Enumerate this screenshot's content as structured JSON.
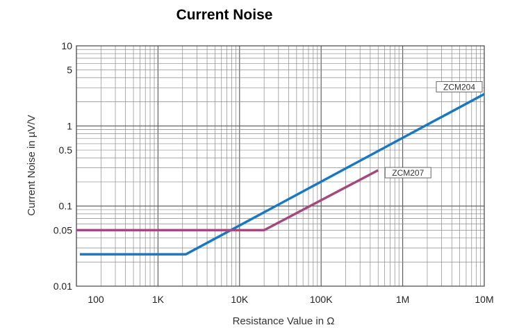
{
  "chart_data": {
    "type": "line",
    "title": "Current Noise",
    "xlabel": "Resistance Value in Ω",
    "ylabel": "Current Noise in µV/V",
    "x_scale": "log",
    "y_scale": "log",
    "xlim": [
      100,
      10000000
    ],
    "ylim": [
      0.01,
      10
    ],
    "grid": true,
    "x_tick_values": [
      100,
      1000,
      10000,
      100000,
      1000000,
      10000000
    ],
    "x_tick_labels": [
      "100",
      "1K",
      "10K",
      "100K",
      "1M",
      "10M"
    ],
    "y_tick_values": [
      10,
      5,
      1,
      0.5,
      0.1,
      0.05,
      0.01
    ],
    "y_tick_labels": [
      "10",
      "5",
      "1",
      "0.5",
      "0.1",
      "0.05",
      "0.01"
    ],
    "series": [
      {
        "name": "ZCM204",
        "color": "#1a78c2",
        "x": [
          110,
          2200,
          10000000
        ],
        "y": [
          0.025,
          0.025,
          2.5
        ]
      },
      {
        "name": "ZCM207",
        "color": "#a24a7c",
        "x": [
          100,
          20000,
          500000
        ],
        "y": [
          0.05,
          0.05,
          0.28
        ]
      }
    ]
  }
}
